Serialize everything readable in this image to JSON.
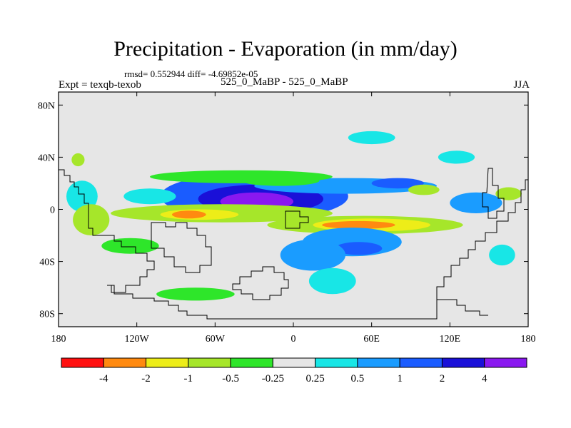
{
  "page": {
    "title": "Precipitation - Evaporation (in mm/day)",
    "stats": "rmsd= 0.552944 diff= -4.69852e-05",
    "left_label": "Expt = texqb-texob",
    "center_label": "525_0_MaBP - 525_0_MaBP",
    "right_label": "JJA"
  },
  "chart_data": {
    "type": "heatmap",
    "title": "Precipitation - Evaporation (in mm/day)",
    "xlabel": "",
    "ylabel": "",
    "xlim": [
      -180,
      180
    ],
    "ylim": [
      -90,
      90
    ],
    "x_ticks": [
      {
        "value": -180,
        "label": "180"
      },
      {
        "value": -120,
        "label": "120W"
      },
      {
        "value": -60,
        "label": "60W"
      },
      {
        "value": 0,
        "label": "0"
      },
      {
        "value": 60,
        "label": "60E"
      },
      {
        "value": 120,
        "label": "120E"
      },
      {
        "value": 180,
        "label": "180"
      }
    ],
    "y_ticks": [
      {
        "value": 80,
        "label": "80N"
      },
      {
        "value": 40,
        "label": "40N"
      },
      {
        "value": 0,
        "label": "0"
      },
      {
        "value": -40,
        "label": "40S"
      },
      {
        "value": -80,
        "label": "80S"
      }
    ],
    "background_color": "#e6e6e6",
    "colorbar": {
      "colors": [
        "#ff1010",
        "#ff8a10",
        "#eded18",
        "#a6e62a",
        "#2ee62a",
        "#e6e6e6",
        "#18e6e6",
        "#1a9cff",
        "#1a5cff",
        "#1a10d8",
        "#8a18f0"
      ],
      "labels": [
        "-4",
        "-2",
        "-1",
        "-0.5",
        "-0.25",
        "0.25",
        "0.5",
        "1",
        "2",
        "4"
      ],
      "levels": [
        -4,
        -2,
        -1,
        -0.5,
        -0.25,
        0.25,
        0.5,
        1,
        2,
        4
      ]
    },
    "anomalies": [
      {
        "cx": -30,
        "cy": 10,
        "rx": 72,
        "ry": 18,
        "value": 1.5
      },
      {
        "cx": -25,
        "cy": 8,
        "rx": 48,
        "ry": 11,
        "value": 3
      },
      {
        "cx": -28,
        "cy": 6,
        "rx": 28,
        "ry": 7,
        "value": 5
      },
      {
        "cx": -55,
        "cy": -3,
        "rx": 85,
        "ry": 7,
        "value": -0.6
      },
      {
        "cx": -72,
        "cy": -4,
        "rx": 30,
        "ry": 4,
        "value": -1.5
      },
      {
        "cx": -80,
        "cy": -4,
        "rx": 13,
        "ry": 3,
        "value": -3
      },
      {
        "cx": 55,
        "cy": -12,
        "rx": 75,
        "ry": 7,
        "value": -0.6
      },
      {
        "cx": 60,
        "cy": -12,
        "rx": 45,
        "ry": 5,
        "value": -1.2
      },
      {
        "cx": 50,
        "cy": -12,
        "rx": 28,
        "ry": 3,
        "value": -3
      },
      {
        "cx": 45,
        "cy": -25,
        "rx": 38,
        "ry": 11,
        "value": 0.8
      },
      {
        "cx": 50,
        "cy": -30,
        "rx": 18,
        "ry": 5,
        "value": 1.5
      },
      {
        "cx": 15,
        "cy": -35,
        "rx": 25,
        "ry": 12,
        "value": 0.6
      },
      {
        "cx": 30,
        "cy": -55,
        "rx": 18,
        "ry": 10,
        "value": 0.4
      },
      {
        "cx": 40,
        "cy": 18,
        "rx": 70,
        "ry": 6,
        "value": 0.8
      },
      {
        "cx": 80,
        "cy": 20,
        "rx": 20,
        "ry": 4,
        "value": 1.2
      },
      {
        "cx": 100,
        "cy": 15,
        "rx": 12,
        "ry": 4,
        "value": -0.6
      },
      {
        "cx": 140,
        "cy": 5,
        "rx": 20,
        "ry": 8,
        "value": 0.6
      },
      {
        "cx": 165,
        "cy": 12,
        "rx": 10,
        "ry": 5,
        "value": -0.6
      },
      {
        "cx": -40,
        "cy": 25,
        "rx": 70,
        "ry": 5,
        "value": -0.3
      },
      {
        "cx": -10,
        "cy": 22,
        "rx": 30,
        "ry": 4,
        "value": -0.5
      },
      {
        "cx": 60,
        "cy": 55,
        "rx": 18,
        "ry": 5,
        "value": 0.3
      },
      {
        "cx": 125,
        "cy": 40,
        "rx": 14,
        "ry": 5,
        "value": 0.3
      },
      {
        "cx": -165,
        "cy": 38,
        "rx": 5,
        "ry": 5,
        "value": -0.7
      },
      {
        "cx": -162,
        "cy": 10,
        "rx": 12,
        "ry": 12,
        "value": 0.4
      },
      {
        "cx": -155,
        "cy": -8,
        "rx": 14,
        "ry": 12,
        "value": -0.6
      },
      {
        "cx": -125,
        "cy": -28,
        "rx": 22,
        "ry": 6,
        "value": -0.5
      },
      {
        "cx": -75,
        "cy": -65,
        "rx": 30,
        "ry": 5,
        "value": -0.3
      },
      {
        "cx": -110,
        "cy": 10,
        "rx": 20,
        "ry": 6,
        "value": 0.3
      },
      {
        "cx": 160,
        "cy": -35,
        "rx": 10,
        "ry": 8,
        "value": 0.3
      }
    ]
  }
}
